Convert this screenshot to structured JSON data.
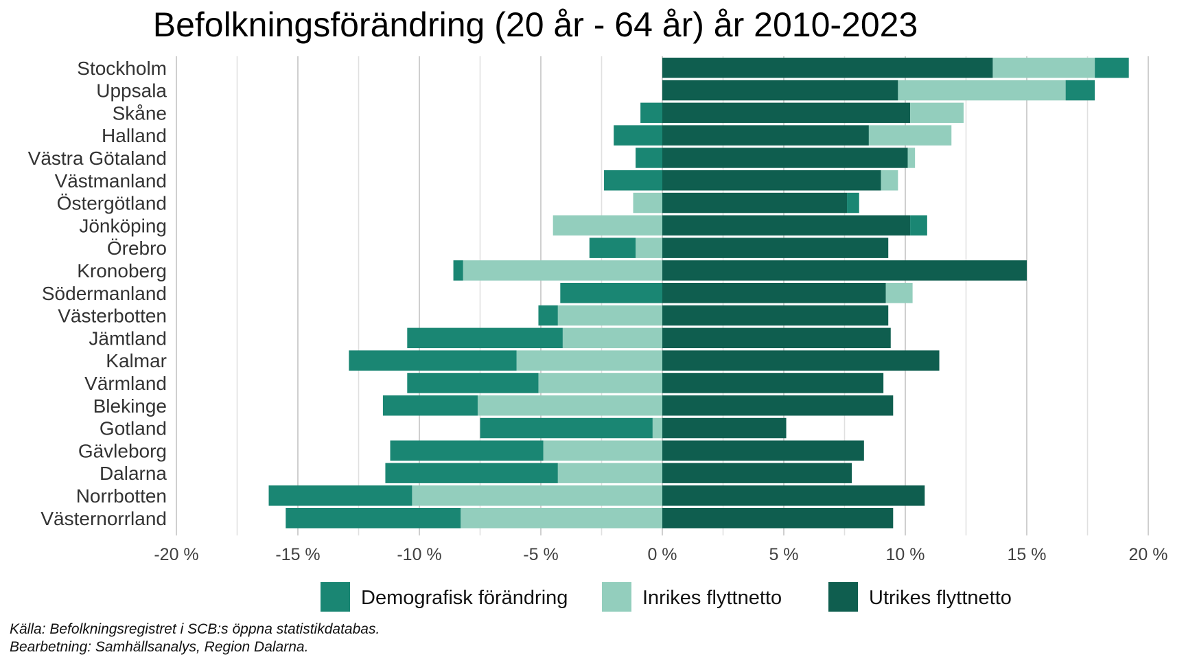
{
  "chart_data": {
    "type": "bar",
    "orientation": "horizontal",
    "stacked": "diverging",
    "title": "Befolkningsförändring (20 år - 64 år) år 2010-2023",
    "xlabel": "",
    "ylabel": "",
    "xlim": [
      -20,
      20
    ],
    "x_ticks": [
      -20,
      -15,
      -10,
      -5,
      0,
      5,
      10,
      15,
      20
    ],
    "x_tick_labels": [
      "-20 %",
      "-15 %",
      "-10 %",
      "-5 %",
      "0 %",
      "5 %",
      "10 %",
      "15 %",
      "20 %"
    ],
    "grid": true,
    "legend_position": "bottom",
    "categories": [
      "Stockholm",
      "Uppsala",
      "Skåne",
      "Halland",
      "Västra Götaland",
      "Västmanland",
      "Östergötland",
      "Jönköping",
      "Örebro",
      "Kronoberg",
      "Södermanland",
      "Västerbotten",
      "Jämtland",
      "Kalmar",
      "Värmland",
      "Blekinge",
      "Gotland",
      "Gävleborg",
      "Dalarna",
      "Norrbotten",
      "Västernorrland"
    ],
    "series": [
      {
        "name": "Utrikes flyttnetto",
        "color": "#0f5e4f",
        "values": [
          13.6,
          9.7,
          10.2,
          8.5,
          10.1,
          9.0,
          7.6,
          10.2,
          9.3,
          15.0,
          9.2,
          9.3,
          9.4,
          11.4,
          9.1,
          9.5,
          5.1,
          8.3,
          7.8,
          10.8,
          9.5
        ]
      },
      {
        "name": "Inrikes flyttnetto",
        "color": "#93cebd",
        "values": [
          4.2,
          6.9,
          2.2,
          3.4,
          0.3,
          0.7,
          -1.2,
          -4.5,
          -1.1,
          -8.2,
          1.1,
          -4.3,
          -4.1,
          -6.0,
          -5.1,
          -7.6,
          -0.4,
          -4.9,
          -4.3,
          -10.3,
          -8.3
        ]
      },
      {
        "name": "Demografisk förändring",
        "color": "#1a8673",
        "values": [
          1.4,
          1.2,
          -0.9,
          -2.0,
          -1.1,
          -2.4,
          0.5,
          0.7,
          -1.9,
          -0.4,
          -4.2,
          -0.8,
          -6.4,
          -6.9,
          -5.4,
          -3.9,
          -7.1,
          -6.3,
          -7.1,
          -5.9,
          -7.2
        ]
      }
    ],
    "legend_order": [
      "Demografisk förändring",
      "Inrikes flyttnetto",
      "Utrikes flyttnetto"
    ]
  },
  "source": {
    "line1": "Källa: Befolkningsregistret i SCB:s öppna statistikdatabas.",
    "line2": "Bearbetning: Samhällsanalys, Region Dalarna."
  }
}
